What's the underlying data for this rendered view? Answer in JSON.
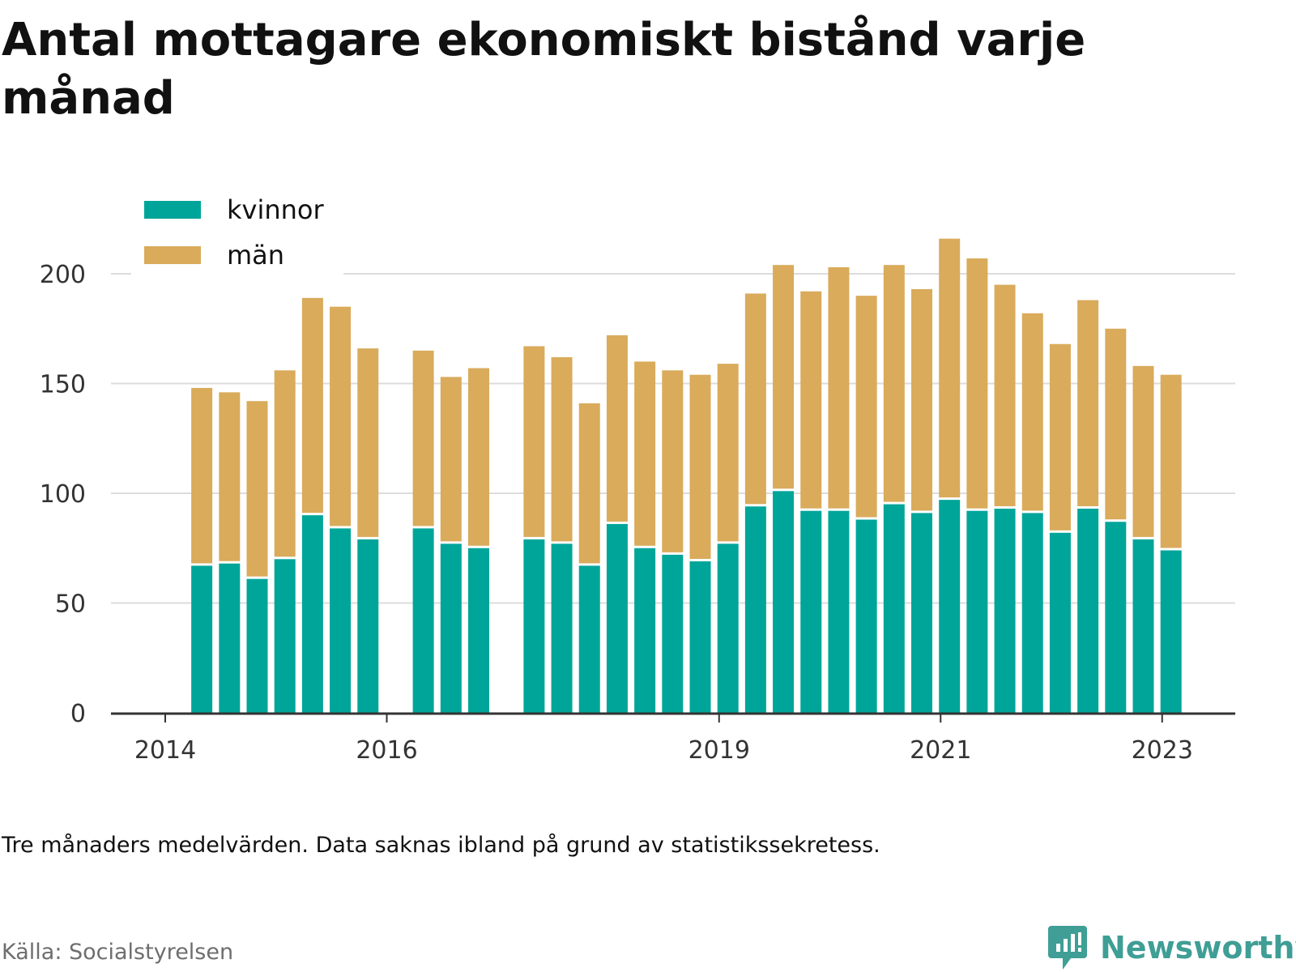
{
  "chart_data": {
    "type": "bar",
    "stacked": true,
    "title": "Antal mottagare ekonomiskt bistånd varje månad",
    "note": "Tre månaders medelvärden. Data saknas ibland på grund av statistikssekretess.",
    "source": "Källa: Socialstyrelsen",
    "brand": "Newsworthy",
    "ylim": [
      0,
      220
    ],
    "yticks": [
      0,
      50,
      100,
      150,
      200
    ],
    "xticks": [
      {
        "label": "2014",
        "x": 2014.0
      },
      {
        "label": "2016",
        "x": 2016.0
      },
      {
        "label": "2019",
        "x": 2019.0
      },
      {
        "label": "2021",
        "x": 2021.0
      },
      {
        "label": "2023",
        "x": 2023.0
      }
    ],
    "xlim": [
      2013.51,
      2023.66
    ],
    "grid": true,
    "legend_position": "top-left",
    "series": [
      {
        "name": "kvinnor",
        "color": "#00a599"
      },
      {
        "name": "män",
        "color": "#d9ab5b"
      }
    ],
    "x": [
      2014.33,
      2014.58,
      2014.83,
      2015.08,
      2015.33,
      2015.58,
      2015.83,
      2016.33,
      2016.58,
      2016.83,
      2017.33,
      2017.58,
      2017.83,
      2018.08,
      2018.33,
      2018.58,
      2018.83,
      2019.08,
      2019.33,
      2019.58,
      2019.83,
      2020.08,
      2020.33,
      2020.58,
      2020.83,
      2021.08,
      2021.33,
      2021.58,
      2021.83,
      2022.08,
      2022.33,
      2022.58,
      2022.83,
      2023.08
    ],
    "values": {
      "kvinnor": [
        67,
        68,
        61,
        70,
        90,
        84,
        79,
        84,
        77,
        75,
        79,
        77,
        67,
        86,
        75,
        72,
        69,
        77,
        94,
        101,
        92,
        92,
        88,
        95,
        91,
        97,
        92,
        93,
        91,
        82,
        93,
        87,
        79,
        74
      ],
      "män": [
        81,
        78,
        81,
        86,
        99,
        101,
        87,
        81,
        76,
        82,
        88,
        85,
        74,
        86,
        85,
        84,
        85,
        82,
        97,
        103,
        100,
        111,
        102,
        109,
        102,
        119,
        115,
        102,
        91,
        86,
        95,
        88,
        79,
        80
      ]
    }
  }
}
